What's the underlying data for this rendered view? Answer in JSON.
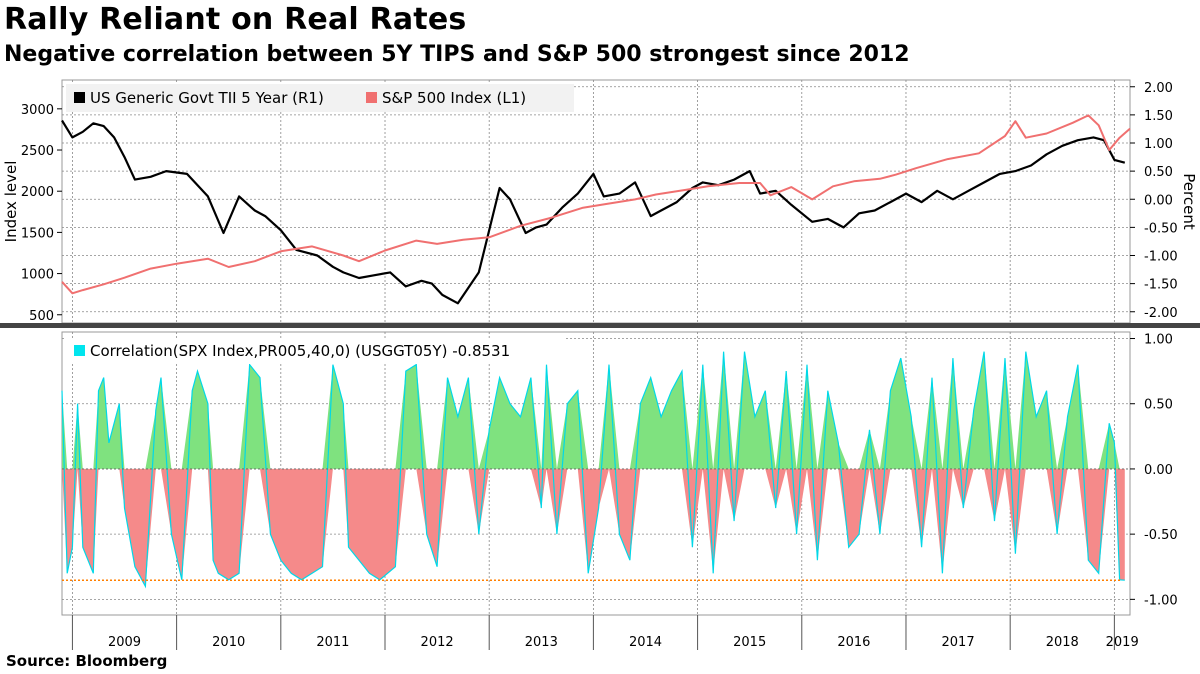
{
  "title": "Rally Reliant on Real Rates",
  "subtitle": "Negative correlation between 5Y TIPS and S&P 500 strongest since 2012",
  "source": "Source:  Bloomberg",
  "colors": {
    "spx": "#f07070",
    "tips": "#000000",
    "corr_line": "#00d8e8",
    "corr_pos": "#7fe27f",
    "corr_neg": "#f58a8a",
    "ref": "#ff7f00",
    "grid": "#888888"
  },
  "chart_data": [
    {
      "type": "line",
      "title": "",
      "ylabel_left": "Index level",
      "ylabel_right": "Percent",
      "left_ticks": [
        "3000",
        "2500",
        "2000",
        "1500",
        "1000",
        "500"
      ],
      "right_ticks": [
        "2.00",
        "1.50",
        "1.00",
        "0.50",
        "0.00",
        "-0.50",
        "-1.00",
        "-1.50",
        "-2.00"
      ],
      "ylim_left": [
        400,
        3350
      ],
      "ylim_right": [
        -2.2,
        2.12
      ],
      "legend_position": "top-left",
      "grid": true,
      "series": [
        {
          "name": "US Generic Govt TII 5 Year  (R1)",
          "axis": "right",
          "color": "#000000",
          "x": [
            2008.9,
            2009.0,
            2009.1,
            2009.2,
            2009.3,
            2009.4,
            2009.5,
            2009.6,
            2009.75,
            2009.9,
            2010.1,
            2010.3,
            2010.45,
            2010.6,
            2010.75,
            2010.85,
            2011.0,
            2011.15,
            2011.35,
            2011.5,
            2011.6,
            2011.75,
            2011.9,
            2012.05,
            2012.2,
            2012.35,
            2012.45,
            2012.55,
            2012.7,
            2012.9,
            2013.1,
            2013.2,
            2013.35,
            2013.45,
            2013.55,
            2013.7,
            2013.85,
            2014.0,
            2014.1,
            2014.25,
            2014.4,
            2014.55,
            2014.65,
            2014.8,
            2014.95,
            2015.05,
            2015.2,
            2015.35,
            2015.5,
            2015.6,
            2015.75,
            2015.9,
            2016.1,
            2016.25,
            2016.4,
            2016.55,
            2016.7,
            2016.85,
            2017.0,
            2017.15,
            2017.3,
            2017.45,
            2017.6,
            2017.75,
            2017.9,
            2018.05,
            2018.2,
            2018.35,
            2018.5,
            2018.65,
            2018.8,
            2018.9,
            2019.0,
            2019.1
          ],
          "y": [
            1.4,
            1.1,
            1.2,
            1.35,
            1.3,
            1.1,
            0.75,
            0.35,
            0.4,
            0.5,
            0.45,
            0.05,
            -0.6,
            0.05,
            -0.2,
            -0.3,
            -0.55,
            -0.9,
            -1.0,
            -1.2,
            -1.3,
            -1.4,
            -1.35,
            -1.3,
            -1.55,
            -1.45,
            -1.5,
            -1.7,
            -1.85,
            -1.3,
            0.2,
            0.0,
            -0.6,
            -0.5,
            -0.45,
            -0.15,
            0.1,
            0.45,
            0.05,
            0.1,
            0.3,
            -0.3,
            -0.2,
            -0.05,
            0.2,
            0.3,
            0.25,
            0.35,
            0.5,
            0.1,
            0.15,
            -0.1,
            -0.4,
            -0.35,
            -0.5,
            -0.25,
            -0.2,
            -0.05,
            0.1,
            -0.05,
            0.15,
            0.0,
            0.15,
            0.3,
            0.45,
            0.5,
            0.6,
            0.8,
            0.95,
            1.05,
            1.1,
            1.05,
            0.7,
            0.65
          ]
        },
        {
          "name": "S&P 500 Index  (L1)",
          "axis": "left",
          "color": "#f07070",
          "x": [
            2008.9,
            2009.0,
            2009.1,
            2009.3,
            2009.5,
            2009.75,
            2010.0,
            2010.3,
            2010.5,
            2010.75,
            2011.0,
            2011.3,
            2011.6,
            2011.75,
            2012.0,
            2012.3,
            2012.5,
            2012.75,
            2013.0,
            2013.3,
            2013.6,
            2013.9,
            2014.1,
            2014.4,
            2014.6,
            2014.9,
            2015.1,
            2015.4,
            2015.6,
            2015.7,
            2015.9,
            2016.1,
            2016.3,
            2016.5,
            2016.75,
            2016.9,
            2017.1,
            2017.4,
            2017.7,
            2017.95,
            2018.05,
            2018.15,
            2018.35,
            2018.6,
            2018.75,
            2018.85,
            2018.95,
            2019.05,
            2019.15
          ],
          "y": [
            900,
            760,
            800,
            870,
            950,
            1060,
            1120,
            1180,
            1080,
            1150,
            1270,
            1330,
            1220,
            1150,
            1280,
            1400,
            1360,
            1410,
            1440,
            1580,
            1680,
            1800,
            1840,
            1900,
            1960,
            2020,
            2060,
            2100,
            2100,
            1950,
            2050,
            1900,
            2060,
            2120,
            2150,
            2200,
            2280,
            2390,
            2460,
            2670,
            2850,
            2650,
            2700,
            2830,
            2920,
            2800,
            2500,
            2650,
            2760
          ]
        }
      ]
    },
    {
      "type": "area",
      "title": "",
      "legend_position": "top-left",
      "grid": true,
      "ylim": [
        -1.12,
        1.05
      ],
      "ticks": [
        "1.00",
        "0.50",
        "0.00",
        "-0.50",
        "-1.00"
      ],
      "reference_line": -0.8531,
      "series": [
        {
          "name": "Correlation(SPX Index,PR005,40,0) (USGGT05Y) -0.8531",
          "x": [
            2008.9,
            2008.95,
            2009.0,
            2009.05,
            2009.1,
            2009.2,
            2009.25,
            2009.3,
            2009.35,
            2009.45,
            2009.5,
            2009.6,
            2009.7,
            2009.8,
            2009.85,
            2009.95,
            2010.05,
            2010.15,
            2010.2,
            2010.3,
            2010.35,
            2010.4,
            2010.5,
            2010.6,
            2010.7,
            2010.8,
            2010.9,
            2011.0,
            2011.1,
            2011.2,
            2011.3,
            2011.4,
            2011.5,
            2011.6,
            2011.65,
            2011.75,
            2011.85,
            2011.95,
            2012.1,
            2012.2,
            2012.3,
            2012.4,
            2012.5,
            2012.6,
            2012.7,
            2012.8,
            2012.9,
            2013.0,
            2013.1,
            2013.2,
            2013.3,
            2013.4,
            2013.5,
            2013.55,
            2013.65,
            2013.75,
            2013.85,
            2013.95,
            2014.05,
            2014.15,
            2014.25,
            2014.35,
            2014.45,
            2014.55,
            2014.65,
            2014.75,
            2014.85,
            2014.95,
            2015.05,
            2015.15,
            2015.25,
            2015.35,
            2015.45,
            2015.55,
            2015.65,
            2015.75,
            2015.85,
            2015.95,
            2016.05,
            2016.15,
            2016.25,
            2016.35,
            2016.45,
            2016.55,
            2016.65,
            2016.75,
            2016.85,
            2016.95,
            2017.05,
            2017.15,
            2017.25,
            2017.35,
            2017.45,
            2017.55,
            2017.65,
            2017.75,
            2017.85,
            2017.95,
            2018.05,
            2018.15,
            2018.25,
            2018.35,
            2018.45,
            2018.55,
            2018.65,
            2018.75,
            2018.85,
            2018.95,
            2019.0,
            2019.05,
            2019.1
          ],
          "y": [
            0.6,
            -0.8,
            -0.6,
            0.5,
            -0.6,
            -0.8,
            0.6,
            0.7,
            0.2,
            0.5,
            -0.3,
            -0.75,
            -0.9,
            0.45,
            0.7,
            -0.5,
            -0.85,
            0.6,
            0.75,
            0.5,
            -0.7,
            -0.8,
            -0.85,
            -0.8,
            0.8,
            0.7,
            -0.5,
            -0.7,
            -0.8,
            -0.85,
            -0.8,
            -0.75,
            0.8,
            0.5,
            -0.6,
            -0.7,
            -0.8,
            -0.85,
            -0.75,
            0.75,
            0.8,
            -0.5,
            -0.75,
            0.7,
            0.4,
            0.7,
            -0.5,
            0.3,
            0.7,
            0.5,
            0.4,
            0.7,
            -0.3,
            0.8,
            -0.5,
            0.5,
            0.6,
            -0.8,
            -0.3,
            0.8,
            -0.5,
            -0.7,
            0.5,
            0.7,
            0.4,
            0.6,
            0.75,
            -0.6,
            0.8,
            -0.8,
            0.9,
            -0.4,
            0.9,
            0.4,
            0.6,
            -0.3,
            0.75,
            -0.5,
            0.8,
            -0.7,
            0.6,
            0.2,
            -0.6,
            -0.5,
            0.3,
            -0.5,
            0.6,
            0.85,
            0.4,
            -0.6,
            0.7,
            -0.8,
            0.85,
            -0.3,
            0.45,
            0.9,
            -0.4,
            0.85,
            -0.65,
            0.9,
            0.4,
            0.6,
            -0.5,
            0.4,
            0.8,
            -0.7,
            -0.8,
            0.35,
            0.2,
            -0.85,
            -0.8531
          ]
        }
      ]
    }
  ],
  "x_axis": {
    "labels": [
      "2009",
      "2010",
      "2011",
      "2012",
      "2013",
      "2014",
      "2015",
      "2016",
      "2017",
      "2018",
      "2019"
    ]
  }
}
